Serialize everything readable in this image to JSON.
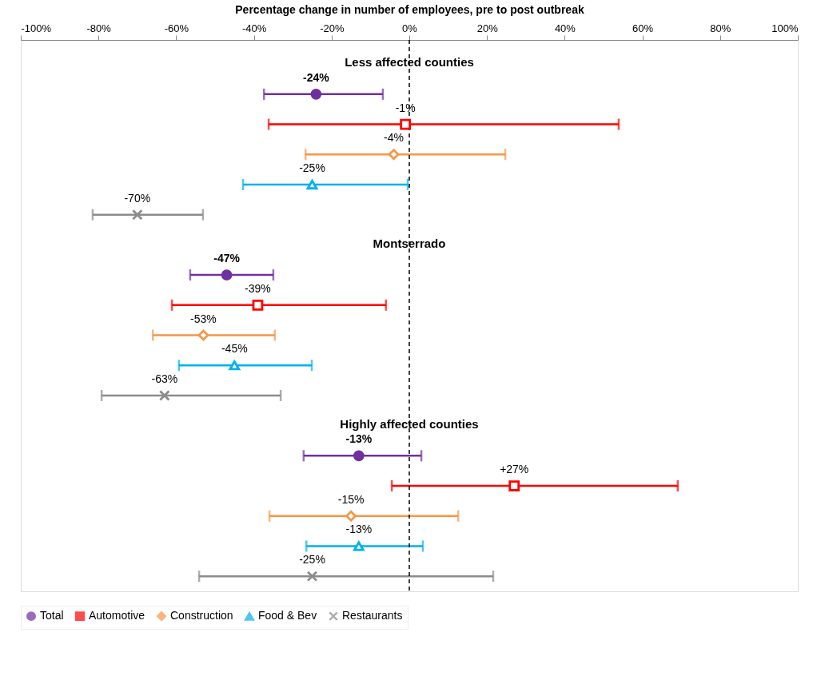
{
  "chart_data": {
    "type": "scatter",
    "orientation": "horizontal",
    "xlabel": "Percentage change in number of employees, pre to post outbreak",
    "categories": [
      null,
      null,
      null,
      null,
      null,
      null,
      null,
      null,
      null,
      null,
      null,
      null,
      null,
      null,
      null,
      null,
      null,
      null
    ],
    "xlim": [
      -100,
      100
    ],
    "xticks": [
      {
        "value": -100,
        "label": "-100%"
      },
      {
        "value": -80,
        "label": "-80%"
      },
      {
        "value": -60,
        "label": "-60%"
      },
      {
        "value": -40,
        "label": "-40%"
      },
      {
        "value": -20,
        "label": "-20%"
      },
      {
        "value": 0,
        "label": "0%"
      },
      {
        "value": 20,
        "label": "20%"
      },
      {
        "value": 40,
        "label": "40%"
      },
      {
        "value": 60,
        "label": "60%"
      },
      {
        "value": 80,
        "label": "80%"
      },
      {
        "value": 100,
        "label": "100%"
      }
    ],
    "annotations": [
      "Less affected counties",
      "Montserrado",
      "Highly affected counties"
    ],
    "ref_lines": [
      {
        "axis": "x",
        "value": 0,
        "color": "#000000",
        "line_style": "dashed"
      }
    ],
    "legend": "bottom",
    "grid": false,
    "series": [
      {
        "name": "Total",
        "color": "#7030a0",
        "marker": "circle",
        "values": [
          null,
          -24,
          null,
          null,
          null,
          null,
          null,
          -47,
          null,
          null,
          null,
          null,
          null,
          -13,
          null,
          null,
          null,
          null
        ],
        "errors": [
          null,
          [
            -37.4,
            -6.8
          ],
          null,
          null,
          null,
          null,
          null,
          [
            -56.4,
            -35
          ],
          null,
          null,
          null,
          null,
          null,
          [
            -27.2,
            3.1
          ],
          null,
          null,
          null,
          null
        ],
        "value_labels": [
          null,
          "-24%",
          null,
          null,
          null,
          null,
          null,
          "-47%",
          null,
          null,
          null,
          null,
          null,
          "-13%",
          null,
          null,
          null,
          null
        ]
      },
      {
        "name": "Automotive",
        "color": "#ff0000",
        "marker": "square",
        "values": [
          null,
          null,
          -1,
          null,
          null,
          null,
          null,
          null,
          -39,
          null,
          null,
          null,
          null,
          null,
          27,
          null,
          null,
          null
        ],
        "errors": [
          null,
          null,
          [
            -36.2,
            53.9
          ],
          null,
          null,
          null,
          null,
          null,
          [
            -61.1,
            -6
          ],
          null,
          null,
          null,
          null,
          null,
          [
            -4.5,
            69.1
          ],
          null,
          null,
          null
        ],
        "value_labels": [
          null,
          null,
          "-1%",
          null,
          null,
          null,
          null,
          null,
          "-39%",
          null,
          null,
          null,
          null,
          null,
          "+27%",
          null,
          null,
          null
        ]
      },
      {
        "name": "Construction",
        "color": "#f79646",
        "marker": "diamond",
        "values": [
          null,
          null,
          null,
          -4,
          null,
          null,
          null,
          null,
          null,
          -53,
          null,
          null,
          null,
          null,
          null,
          -15,
          null,
          null
        ],
        "errors": [
          null,
          null,
          null,
          [
            -26.7,
            24.7
          ],
          null,
          null,
          null,
          null,
          null,
          [
            -66,
            -34.6
          ],
          null,
          null,
          null,
          null,
          null,
          [
            -36,
            12.6
          ],
          null,
          null
        ],
        "value_labels": [
          null,
          null,
          null,
          "-4%",
          null,
          null,
          null,
          null,
          null,
          "-53%",
          null,
          null,
          null,
          null,
          null,
          "-15%",
          null,
          null
        ]
      },
      {
        "name": "Food & Bev",
        "color": "#00b0f0",
        "marker": "triangle",
        "values": [
          null,
          null,
          null,
          null,
          -25,
          null,
          null,
          null,
          null,
          null,
          -45,
          null,
          null,
          null,
          null,
          null,
          -13,
          null
        ],
        "errors": [
          null,
          null,
          null,
          null,
          [
            -42.8,
            -0.4
          ],
          null,
          null,
          null,
          null,
          null,
          [
            -59.3,
            -25.1
          ],
          null,
          null,
          null,
          null,
          null,
          [
            -26.5,
            3.5
          ],
          null
        ],
        "value_labels": [
          null,
          null,
          null,
          null,
          "-25%",
          null,
          null,
          null,
          null,
          null,
          "-45%",
          null,
          null,
          null,
          null,
          null,
          "-13%",
          null
        ]
      },
      {
        "name": "Restaurants",
        "color": "#8c8c8c",
        "marker": "cross",
        "values": [
          null,
          null,
          null,
          null,
          null,
          -70,
          null,
          null,
          null,
          null,
          null,
          -63,
          null,
          null,
          null,
          null,
          null,
          -25
        ],
        "errors": [
          null,
          null,
          null,
          null,
          null,
          [
            -81.5,
            -53.1
          ],
          null,
          null,
          null,
          null,
          null,
          [
            -79.2,
            -33.1
          ],
          null,
          null,
          null,
          null,
          null,
          [
            -54.1,
            21.6
          ]
        ],
        "value_labels": [
          null,
          null,
          null,
          null,
          null,
          "-70%",
          null,
          null,
          null,
          null,
          null,
          "-63%",
          null,
          null,
          null,
          null,
          null,
          "-25%"
        ]
      }
    ]
  }
}
